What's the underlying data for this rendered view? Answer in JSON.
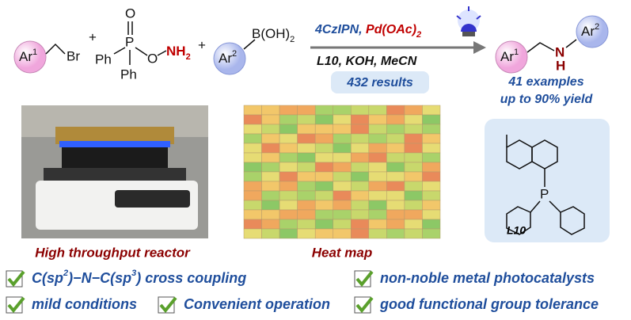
{
  "reaction": {
    "reactant1": {
      "group": "Ar",
      "index": "1",
      "leaving": "Br"
    },
    "plus": "+",
    "reactant2": {
      "phenyl_left": "Ph",
      "phenyl_bottom": "Ph",
      "phosphorus": "P",
      "oxo": "O",
      "oxygen": "O",
      "amine": "NH",
      "amine_count": "2"
    },
    "reactant3": {
      "group": "Ar",
      "index": "2",
      "boron": "B(OH)",
      "boron_count": "2"
    },
    "conditions": {
      "photocatalyst": "4CzIPN,",
      "metal": "Pd(OAc)",
      "metal_count": "2",
      "line2": "L10, KOH, MeCN",
      "results": "432 results"
    },
    "product": {
      "group1": "Ar",
      "index1": "1",
      "nitrogen": "N",
      "hydrogen": "H",
      "group2": "Ar",
      "index2": "2"
    },
    "scope": [
      "41 examples",
      "up to 90% yield"
    ]
  },
  "ligand": {
    "label": "L10",
    "phosphorus": "P"
  },
  "captions": {
    "reactor": "High throughput reactor",
    "heatmap": "Heat map"
  },
  "features": [
    {
      "parts": [
        "C(sp",
        "2",
        ")−N−C(sp",
        "3",
        ") cross coupling"
      ]
    },
    {
      "parts": [
        "non-noble metal photocatalysts"
      ]
    },
    {
      "parts": [
        "mild conditions"
      ]
    },
    {
      "parts": [
        "Convenient operation"
      ]
    },
    {
      "parts": [
        "good functional group tolerance"
      ]
    }
  ]
}
